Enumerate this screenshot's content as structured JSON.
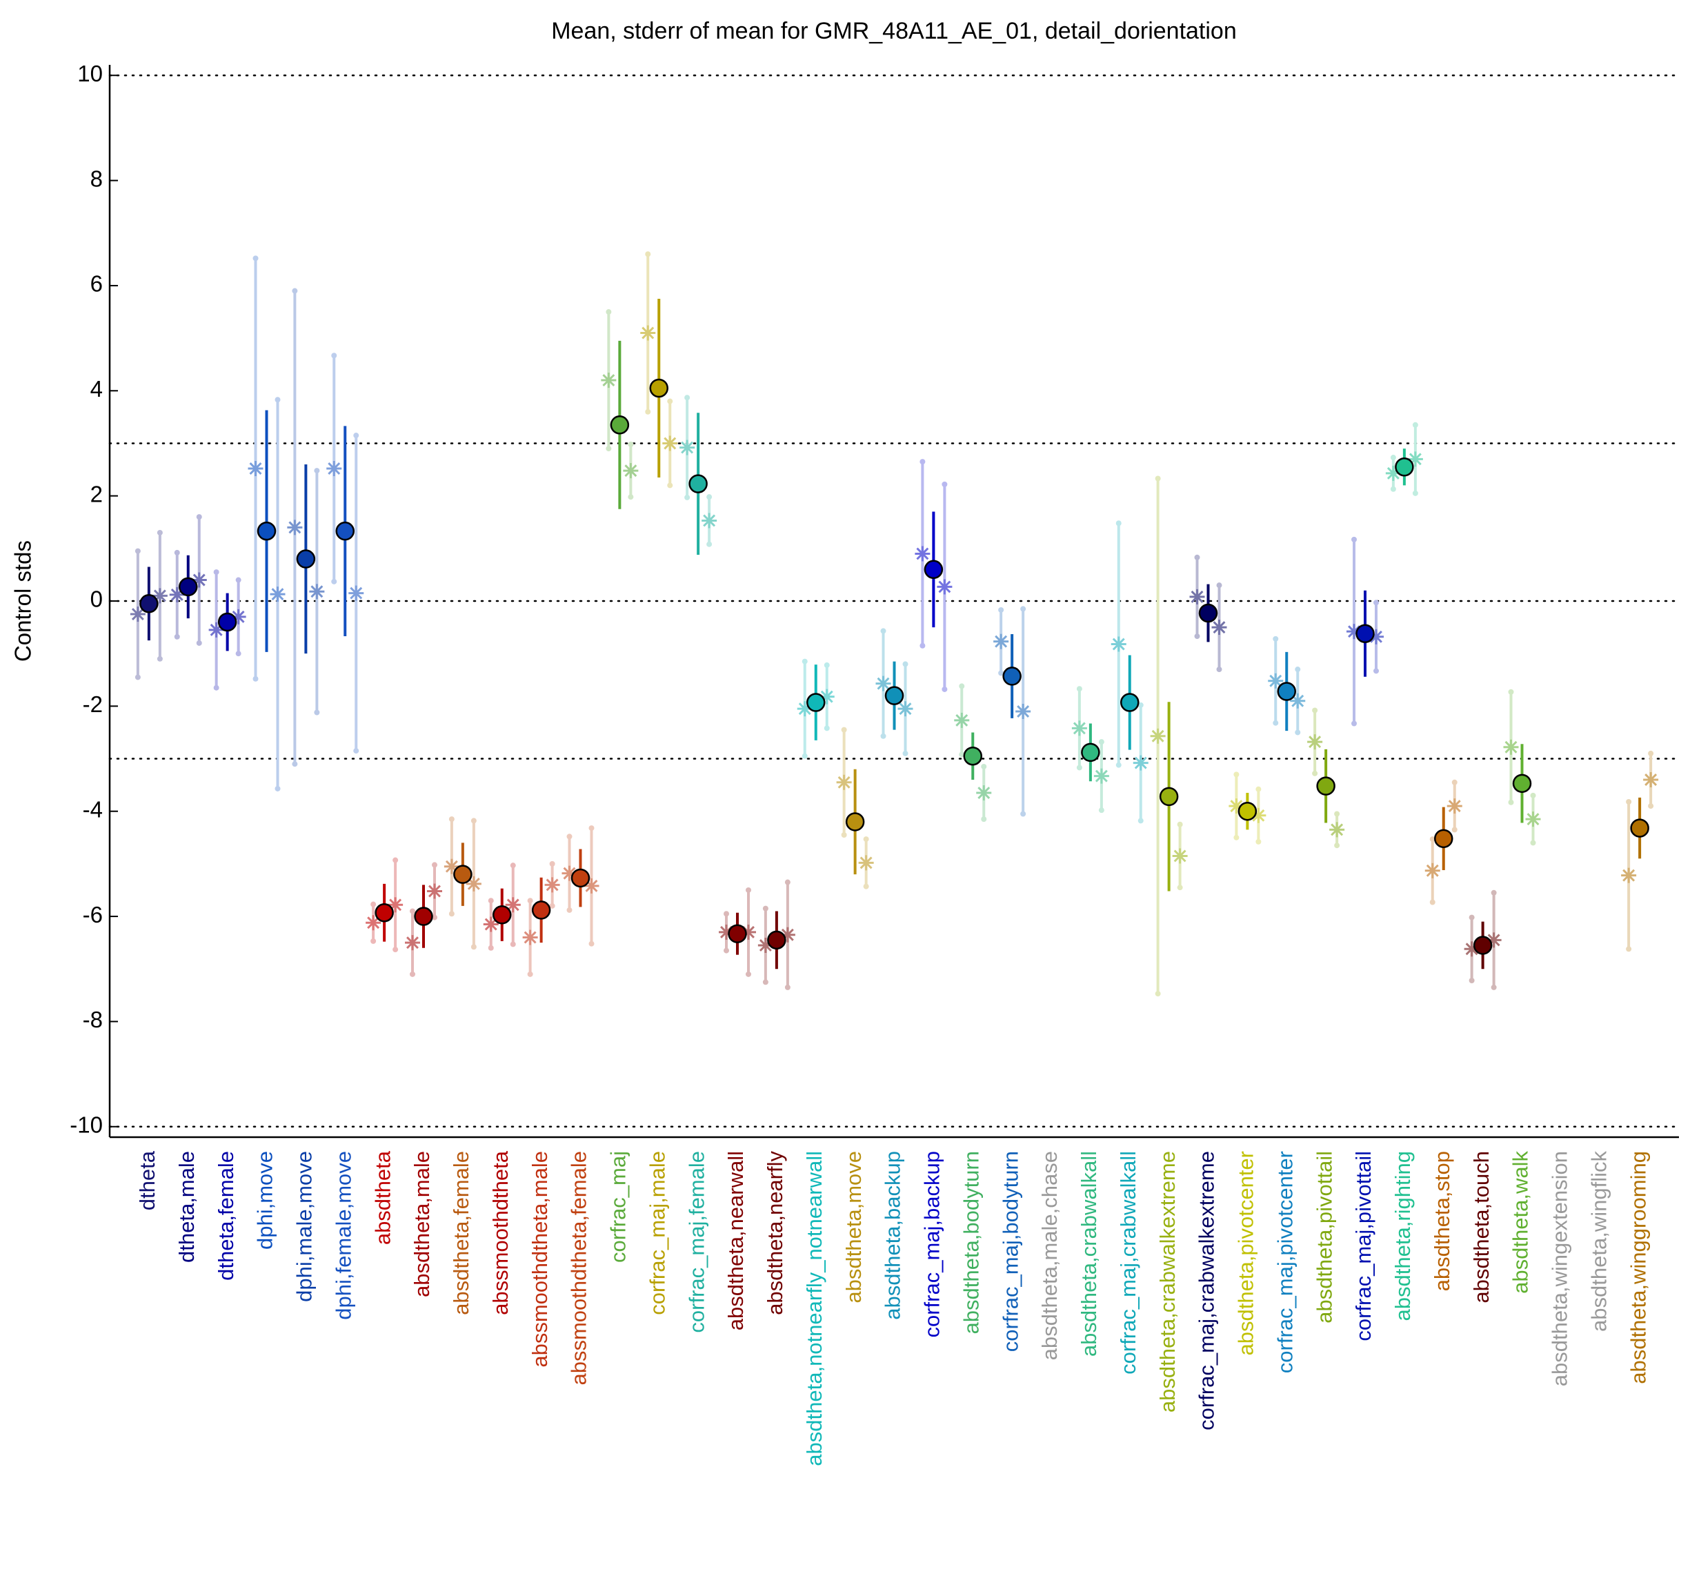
{
  "chart_data": {
    "type": "errorbar",
    "title": "Mean, stderr of mean for GMR_48A11_AE_01, detail_dorientation",
    "ylabel": "Control stds",
    "categories": [
      "dtheta",
      "dtheta,male",
      "dtheta,female",
      "dphi,move",
      "dphi,male,move",
      "dphi,female,move",
      "absdtheta",
      "absdtheta,male",
      "absdtheta,female",
      "abssmoothdtheta",
      "abssmoothdtheta,male",
      "abssmoothdtheta,female",
      "corfrac_maj",
      "corfrac_maj,male",
      "corfrac_maj,female",
      "absdtheta,nearwall",
      "absdtheta,nearfly",
      "absdtheta,notnearfly_notnearwall",
      "absdtheta,move",
      "absdtheta,backup",
      "corfrac_maj,backup",
      "absdtheta,bodyturn",
      "corfrac_maj,bodyturn",
      "absdtheta,male,chase",
      "absdtheta,crabwalkall",
      "corfrac_maj,crabwalkall",
      "absdtheta,crabwalkextreme",
      "corfrac_maj,crabwalkextreme",
      "absdtheta,pivotcenter",
      "corfrac_maj,pivotcenter",
      "absdtheta,pivottail",
      "corfrac_maj,pivottail",
      "absdtheta,righting",
      "absdtheta,stop",
      "absdtheta,touch",
      "absdtheta,walk",
      "absdtheta,wingextension",
      "absdtheta,wingflick",
      "absdtheta,winggrooming"
    ],
    "colors": [
      "#101070",
      "#00007f",
      "#0000a8",
      "#0b4fbf",
      "#0a3ea8",
      "#1450c0",
      "#c00000",
      "#a00000",
      "#b85a10",
      "#b00000",
      "#c03010",
      "#c04010",
      "#5aaa3a",
      "#b8a000",
      "#20b0a0",
      "#800000",
      "#700000",
      "#10b8b8",
      "#b89010",
      "#1090b8",
      "#0000c8",
      "#40b060",
      "#1060b8",
      "#999999",
      "#30b880",
      "#10a8b8",
      "#98b010",
      "#000060",
      "#c0c000",
      "#1080c0",
      "#80a810",
      "#0010b0",
      "#20c090",
      "#b86000",
      "#600000",
      "#60b030",
      "#999999",
      "#999999",
      "#b07000"
    ],
    "values": [
      -0.05,
      0.27,
      -0.4,
      1.33,
      0.8,
      1.33,
      -5.93,
      -6.0,
      -5.2,
      -5.97,
      -5.88,
      -5.27,
      3.35,
      4.05,
      2.23,
      -6.33,
      -6.45,
      -1.93,
      -4.2,
      -1.8,
      0.6,
      -2.95,
      -1.43,
      null,
      -2.88,
      -1.93,
      -3.72,
      -0.23,
      -4.0,
      -1.72,
      -3.52,
      -0.62,
      2.55,
      -4.52,
      -6.55,
      -3.47,
      null,
      null,
      -4.32
    ],
    "errors": [
      0.7,
      0.6,
      0.55,
      2.3,
      1.8,
      2.0,
      0.55,
      0.6,
      0.6,
      0.5,
      0.62,
      0.55,
      1.6,
      1.7,
      1.35,
      0.4,
      0.55,
      0.72,
      1.0,
      0.65,
      1.1,
      0.45,
      0.8,
      null,
      0.55,
      0.9,
      1.8,
      0.55,
      0.35,
      0.75,
      0.7,
      0.82,
      0.35,
      0.6,
      0.45,
      0.75,
      null,
      null,
      0.58
    ],
    "male_values": [
      -0.25,
      0.12,
      -0.55,
      2.52,
      1.4,
      2.52,
      -6.12,
      -6.5,
      -5.05,
      -6.15,
      -6.4,
      -5.18,
      4.2,
      5.1,
      2.92,
      -6.3,
      -6.55,
      -2.05,
      -3.45,
      -1.57,
      0.9,
      -2.27,
      -0.77,
      null,
      -2.42,
      -0.82,
      -2.57,
      0.08,
      -3.9,
      -1.52,
      -2.68,
      -0.58,
      2.43,
      -5.13,
      -6.62,
      -2.78,
      null,
      null,
      -5.22
    ],
    "male_errors": [
      1.2,
      0.8,
      1.1,
      4.0,
      4.5,
      2.15,
      0.35,
      0.6,
      0.9,
      0.45,
      0.7,
      0.7,
      1.3,
      1.5,
      0.95,
      0.35,
      0.7,
      0.9,
      1.0,
      1.0,
      1.75,
      0.65,
      0.6,
      null,
      0.75,
      2.3,
      4.9,
      0.75,
      0.6,
      0.8,
      0.6,
      1.75,
      0.3,
      0.6,
      0.6,
      1.05,
      null,
      null,
      1.4
    ],
    "female_values": [
      0.1,
      0.4,
      -0.3,
      0.13,
      0.18,
      0.15,
      -5.78,
      -5.52,
      -5.38,
      -5.78,
      -5.4,
      -5.42,
      2.48,
      3.0,
      1.53,
      -6.3,
      -6.35,
      -1.82,
      -4.98,
      -2.05,
      0.27,
      -3.65,
      -2.1,
      null,
      -3.33,
      -3.08,
      -4.85,
      -0.5,
      -4.08,
      -1.9,
      -4.35,
      -0.68,
      2.7,
      -3.9,
      -6.45,
      -4.15,
      null,
      null,
      -3.4
    ],
    "female_errors": [
      1.2,
      1.2,
      0.7,
      3.7,
      2.3,
      3.0,
      0.85,
      0.5,
      1.2,
      0.75,
      0.4,
      1.1,
      0.5,
      0.8,
      0.45,
      0.8,
      1.0,
      0.6,
      0.45,
      0.85,
      1.95,
      0.5,
      1.95,
      null,
      0.65,
      1.1,
      0.6,
      0.8,
      0.5,
      0.6,
      0.3,
      0.65,
      0.65,
      0.45,
      0.9,
      0.45,
      null,
      null,
      0.5
    ],
    "ylim": [
      -10.2,
      10.2
    ],
    "yticks": [
      -10,
      -8,
      -6,
      -4,
      -2,
      0,
      2,
      4,
      6,
      8,
      10
    ],
    "reference_lines": [
      -10,
      -3,
      0,
      3,
      10
    ]
  }
}
